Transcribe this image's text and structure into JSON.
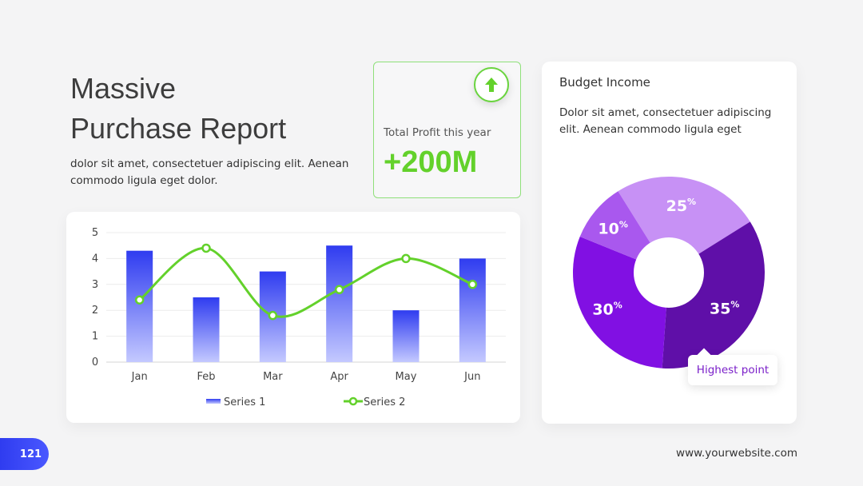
{
  "header": {
    "title_line1": "Massive",
    "title_line2": "Purchase Report",
    "subtitle": "dolor sit amet, consectetuer adipiscing elit. Aenean commodo ligula eget dolor."
  },
  "profit": {
    "label": "Total Profit this year",
    "value": "+200M",
    "icon": "arrow-up-icon"
  },
  "budget": {
    "title": "Budget Income",
    "description": "Dolor sit amet, consectetuer adipiscing elit. Aenean commodo ligula eget",
    "tooltip": "Highest point"
  },
  "footer": {
    "page_number": "121",
    "website": "www.yourwebsite.com"
  },
  "colors": {
    "accent_green": "#63d12b",
    "bar_blue": "#2f3cf0",
    "purple_dark": "#5f0fa8",
    "purple_mid": "#8110e3"
  },
  "chart_data": [
    {
      "type": "bar",
      "categories": [
        "Jan",
        "Feb",
        "Mar",
        "Apr",
        "May",
        "Jun"
      ],
      "series": [
        {
          "name": "Series 1",
          "type": "bar",
          "values": [
            4.3,
            2.5,
            3.5,
            4.5,
            2.0,
            4.0
          ]
        },
        {
          "name": "Series 2",
          "type": "line",
          "values": [
            2.4,
            4.4,
            1.8,
            2.8,
            4.0,
            3.0
          ]
        }
      ],
      "ylim": [
        0,
        5
      ],
      "yticks": [
        "0",
        "1",
        "2",
        "3",
        "4",
        "5"
      ],
      "grid": true,
      "legend": "bottom"
    },
    {
      "type": "pie",
      "donut": true,
      "slices": [
        {
          "label": "25",
          "value": 25,
          "color": "#c791f5"
        },
        {
          "label": "35",
          "value": 35,
          "color": "#5f0fa8"
        },
        {
          "label": "30",
          "value": 30,
          "color": "#8110e3"
        },
        {
          "label": "10",
          "value": 10,
          "color": "#a958ee"
        }
      ],
      "unit": "%"
    }
  ]
}
